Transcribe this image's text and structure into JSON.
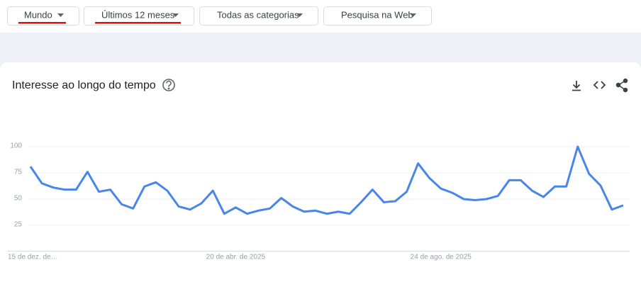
{
  "filters": [
    "Mundo",
    "Últimos 12 meses",
    "Todas as categorias",
    "Pesquisa na Web"
  ],
  "chart_data": {
    "type": "line",
    "title": "Interesse ao longo do tempo",
    "categories": [
      "15 de dez. de…",
      null,
      null,
      null,
      null,
      null,
      null,
      null,
      null,
      null,
      null,
      null,
      null,
      null,
      null,
      null,
      null,
      null,
      "20 de abr. de 2025",
      null,
      null,
      null,
      null,
      null,
      null,
      null,
      null,
      null,
      null,
      null,
      null,
      null,
      null,
      null,
      null,
      null,
      "24 de ago. de 2025",
      null,
      null,
      null,
      null,
      null,
      null,
      null,
      null,
      null,
      null,
      null,
      null,
      null,
      null,
      null,
      null
    ],
    "series": [
      {
        "color": "#4a86e8",
        "values": [
          81,
          65,
          61,
          59,
          59,
          76,
          57,
          59,
          45,
          41,
          62,
          66,
          58,
          43,
          40,
          46,
          58,
          36,
          42,
          36,
          39,
          41,
          51,
          43,
          38,
          39,
          36,
          38,
          36,
          47,
          59,
          47,
          48,
          57,
          84,
          70,
          60,
          56,
          50,
          49,
          50,
          53,
          68,
          68,
          58,
          52,
          62,
          62,
          100,
          74,
          63,
          40,
          44
        ]
      }
    ],
    "ylim": [
      0,
      100
    ],
    "yticks": [
      25,
      50,
      75,
      100
    ],
    "grid": true
  }
}
